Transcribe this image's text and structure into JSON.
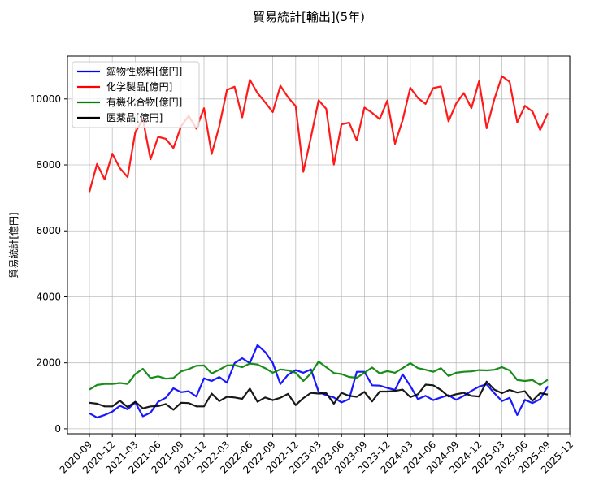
{
  "chart_data": {
    "type": "line",
    "title": "貿易統計[輸出](5年)",
    "xlabel": "",
    "ylabel": "貿易統計[億円]",
    "ylim": [
      -150,
      11300
    ],
    "yticks": [
      0,
      2000,
      4000,
      6000,
      8000,
      10000
    ],
    "xticks": [
      "2020-09",
      "2020-12",
      "2021-03",
      "2021-06",
      "2021-09",
      "2021-12",
      "2022-03",
      "2022-06",
      "2022-09",
      "2022-12",
      "2023-03",
      "2023-06",
      "2023-09",
      "2023-12",
      "2024-03",
      "2024-06",
      "2024-09",
      "2024-12",
      "2025-03",
      "2025-06",
      "2025-09",
      "2025-12"
    ],
    "x_start": "2020-09",
    "grid": true,
    "legend_position": "upper-left",
    "series": [
      {
        "name": "鉱物性燃料[億円]",
        "color": "#0000ff",
        "values": [
          470,
          340,
          420,
          520,
          700,
          590,
          800,
          380,
          490,
          820,
          940,
          1230,
          1110,
          1140,
          980,
          1530,
          1450,
          1570,
          1400,
          1990,
          2140,
          1990,
          2540,
          2330,
          2000,
          1360,
          1640,
          1780,
          1700,
          1800,
          1120,
          1020,
          950,
          800,
          900,
          1730,
          1730,
          1320,
          1310,
          1240,
          1180,
          1650,
          1300,
          900,
          1000,
          870,
          950,
          1020,
          880,
          1000,
          1150,
          1280,
          1350,
          1080,
          840,
          940,
          420,
          880,
          780,
          900,
          1290
        ]
      },
      {
        "name": "化学製品[億円]",
        "color": "#ff0000",
        "values": [
          7180,
          8030,
          7560,
          8340,
          7900,
          7630,
          8980,
          9390,
          8170,
          8850,
          8790,
          8510,
          9170,
          9490,
          9100,
          9720,
          8330,
          9170,
          10270,
          10370,
          9440,
          10580,
          10180,
          9900,
          9600,
          10400,
          10050,
          9780,
          7790,
          8840,
          9960,
          9700,
          8010,
          9230,
          9280,
          8740,
          9740,
          9580,
          9390,
          9950,
          8640,
          9360,
          10340,
          10030,
          9850,
          10330,
          10380,
          9320,
          9860,
          10180,
          9720,
          10540,
          9110,
          9990,
          10690,
          10520,
          9290,
          9790,
          9620,
          9060,
          9570
        ]
      },
      {
        "name": "有機化合物[億円]",
        "color": "#008000",
        "values": [
          1190,
          1330,
          1360,
          1360,
          1390,
          1360,
          1660,
          1820,
          1540,
          1590,
          1520,
          1540,
          1740,
          1810,
          1910,
          1920,
          1680,
          1790,
          1920,
          1930,
          1870,
          1980,
          1950,
          1840,
          1700,
          1800,
          1770,
          1700,
          1450,
          1680,
          2040,
          1870,
          1690,
          1660,
          1570,
          1550,
          1700,
          1860,
          1680,
          1750,
          1700,
          1840,
          1990,
          1840,
          1790,
          1730,
          1840,
          1600,
          1700,
          1730,
          1740,
          1780,
          1770,
          1790,
          1870,
          1770,
          1480,
          1450,
          1480,
          1330,
          1490
        ]
      },
      {
        "name": "医薬品[億円]",
        "color": "#000000",
        "values": [
          790,
          760,
          680,
          680,
          850,
          660,
          820,
          620,
          680,
          690,
          750,
          580,
          790,
          780,
          680,
          680,
          1070,
          840,
          970,
          950,
          910,
          1220,
          820,
          950,
          870,
          940,
          1060,
          720,
          930,
          1090,
          1070,
          1080,
          760,
          1090,
          1000,
          970,
          1120,
          830,
          1130,
          1130,
          1150,
          1190,
          960,
          1050,
          1340,
          1320,
          1180,
          980,
          1050,
          1090,
          1000,
          980,
          1430,
          1190,
          1080,
          1180,
          1100,
          1140,
          850,
          1080,
          1040
        ]
      }
    ]
  }
}
